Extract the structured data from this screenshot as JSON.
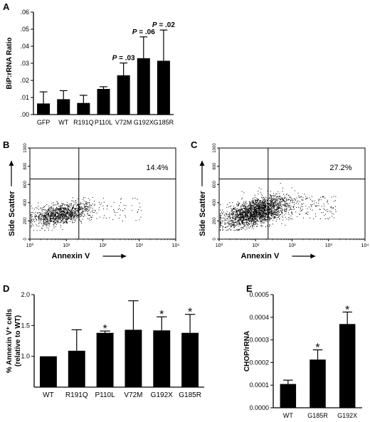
{
  "panels": {
    "A": "A",
    "B": "B",
    "C": "C",
    "D": "D",
    "E": "E"
  },
  "chart_data": [
    {
      "panel": "A",
      "type": "bar",
      "categories": [
        "GFP",
        "WT",
        "R191Q",
        "P110L",
        "V72M",
        "G192X",
        "G185R"
      ],
      "values": [
        0.0065,
        0.009,
        0.0068,
        0.015,
        0.023,
        0.033,
        0.0315
      ],
      "errors": [
        0.0068,
        0.005,
        0.0045,
        0.0013,
        0.0072,
        0.0125,
        0.018
      ],
      "annotations": [
        "",
        "",
        "",
        "",
        "P = .03",
        "P = .06",
        "P = .02"
      ],
      "ylabel": "BiP:rRNA Ratio",
      "ylim": [
        0,
        0.06
      ],
      "yticks": [
        ".00",
        ".01",
        ".02",
        ".03",
        ".04",
        ".05",
        ".06"
      ],
      "grid": false
    },
    {
      "panel": "B",
      "type": "scatter",
      "xlabel": "Annexin V",
      "ylabel": "Side Scatter",
      "x_scale": "log",
      "xlim": [
        1,
        10000
      ],
      "ylim": [
        0,
        1000
      ],
      "xticks": [
        "10⁰",
        "10¹",
        "10²",
        "10³",
        "10⁴"
      ],
      "yticks": [
        "0",
        "200",
        "400",
        "600",
        "800",
        "1000"
      ],
      "quadrant_x": 22,
      "quadrant_y": 660,
      "percentage_label": "14.4%"
    },
    {
      "panel": "C",
      "type": "scatter",
      "xlabel": "Annexin V",
      "ylabel": "Side Scatter",
      "x_scale": "log",
      "xlim": [
        1,
        10000
      ],
      "ylim": [
        0,
        1000
      ],
      "xticks": [
        "10⁰",
        "10¹",
        "10²",
        "10³",
        "10⁴"
      ],
      "yticks": [
        "0",
        "200",
        "400",
        "600",
        "800",
        "1000"
      ],
      "quadrant_x": 22,
      "quadrant_y": 660,
      "percentage_label": "27.2%"
    },
    {
      "panel": "D",
      "type": "bar",
      "categories": [
        "WT",
        "R191Q",
        "P110L",
        "V72M",
        "G192X",
        "G185R"
      ],
      "values": [
        1.0,
        1.09,
        1.38,
        1.43,
        1.42,
        1.38
      ],
      "errors": [
        0,
        0.34,
        0.03,
        0.47,
        0.22,
        0.3
      ],
      "annotations": [
        "",
        "",
        "*",
        "",
        "*",
        "*"
      ],
      "ylabel_lines": [
        "% Annexin V⁺ cells",
        "(relative to WT)"
      ],
      "ylim": [
        0.5,
        2.0
      ],
      "yticks": [
        "1.0",
        "1.5",
        "2.0"
      ],
      "grid": false
    },
    {
      "panel": "E",
      "type": "bar",
      "categories": [
        "WT",
        "G185R",
        "G192X"
      ],
      "values": [
        0.000105,
        0.000213,
        0.00037
      ],
      "errors": [
        1.7e-05,
        4.3e-05,
        5.3e-05
      ],
      "annotations": [
        "",
        "*",
        "*"
      ],
      "ylabel": "CHOP/rRNA",
      "ylim": [
        0,
        0.0005
      ],
      "yticks": [
        "0.0000",
        "0.0001",
        "0.0002",
        "0.0003",
        "0.0004",
        "0.0005"
      ],
      "grid": false
    }
  ]
}
